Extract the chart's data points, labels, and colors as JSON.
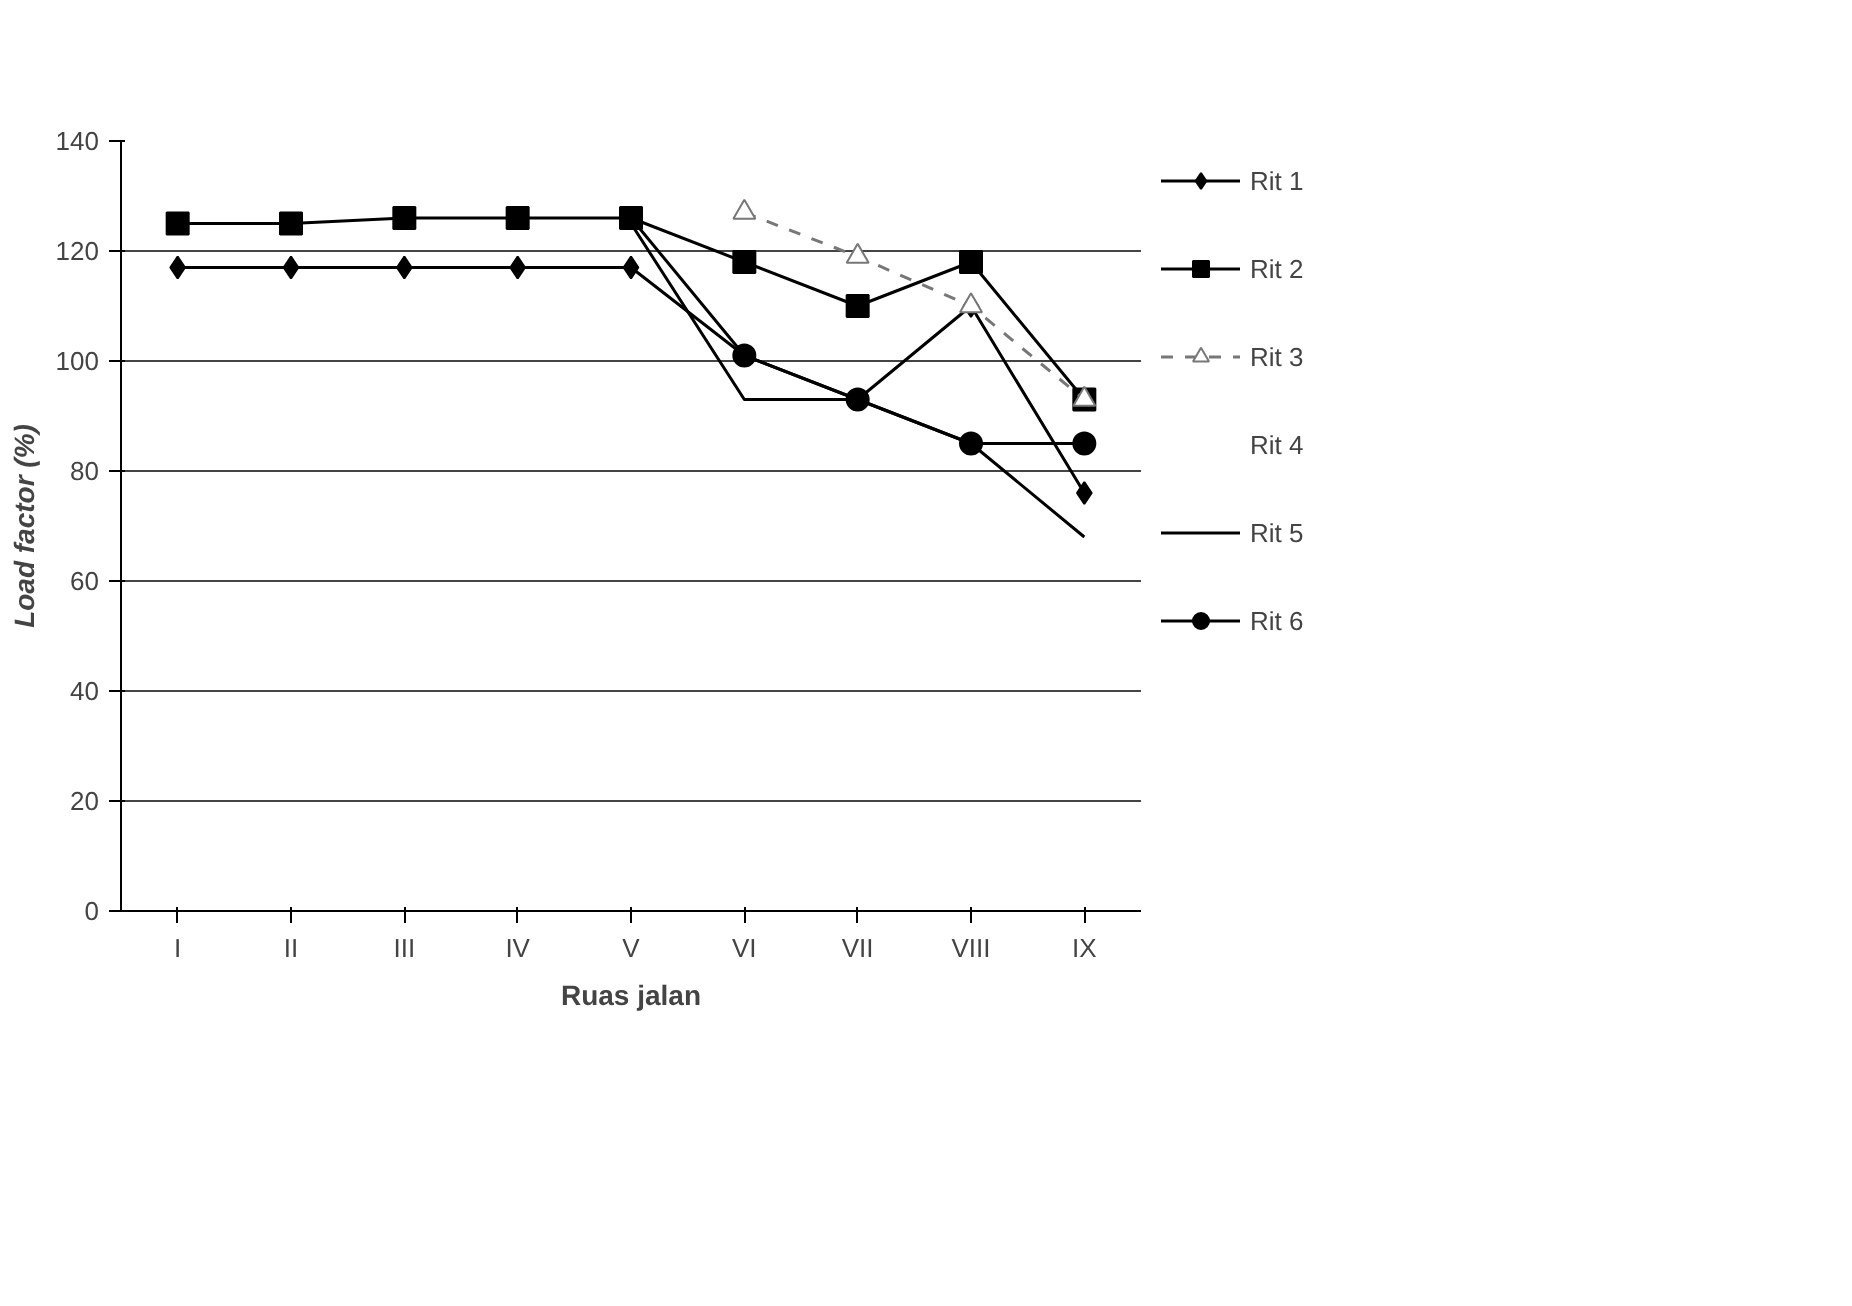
{
  "chart_data": {
    "type": "line",
    "xlabel": "Ruas jalan",
    "ylabel": "Load factor (%)",
    "categories": [
      "I",
      "II",
      "III",
      "IV",
      "V",
      "VI",
      "VII",
      "VIII",
      "IX"
    ],
    "ylim": [
      0,
      140
    ],
    "yticks": [
      0,
      20,
      40,
      60,
      80,
      100,
      120,
      140
    ],
    "grid": "y",
    "legend": "right",
    "series": [
      {
        "name": "Rit 1",
        "color": "#000000",
        "marker": "diamond",
        "line_style": "solid",
        "values": [
          117,
          117,
          117,
          117,
          117,
          101,
          93,
          110,
          76
        ]
      },
      {
        "name": "Rit 2",
        "color": "#000000",
        "marker": "square",
        "line_style": "solid",
        "values": [
          125,
          125,
          126,
          126,
          126,
          118,
          110,
          118,
          93
        ]
      },
      {
        "name": "Rit 3",
        "color": "#777777",
        "marker": "triangle",
        "line_style": "dashed",
        "values": [
          null,
          null,
          null,
          null,
          null,
          127,
          119,
          110,
          93
        ]
      },
      {
        "name": "Rit 4",
        "marker": "none",
        "line_style": "solid",
        "values": [
          null,
          null,
          null,
          null,
          null,
          null,
          null,
          null,
          null
        ]
      },
      {
        "name": "Rit 5",
        "color": "#000000",
        "marker": "none",
        "line_style": "solid",
        "values": [
          null,
          null,
          null,
          null,
          125,
          93,
          93,
          85,
          68
        ]
      },
      {
        "name": "Rit 6",
        "color": "#000000",
        "marker": "circle",
        "line_style": "solid",
        "values": [
          null,
          null,
          null,
          null,
          126,
          101,
          93,
          85,
          85
        ]
      }
    ]
  }
}
